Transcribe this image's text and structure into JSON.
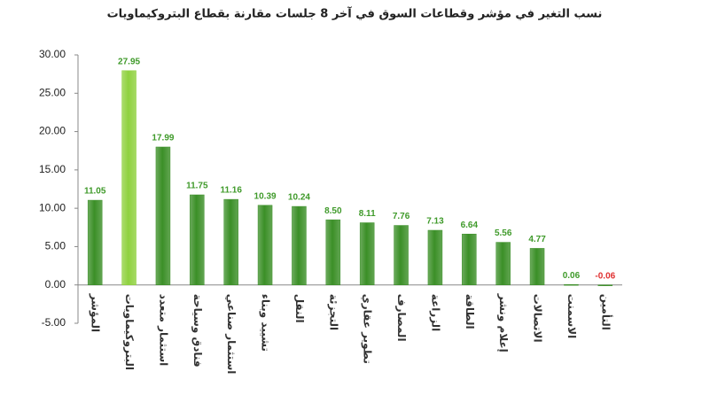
{
  "chart_data": {
    "type": "bar",
    "title": "نسب التغير في مؤشر وقطاعات السوق في آخر 8 جلسات مقارنة بقطاع البتروكيماويات",
    "categories": [
      "المؤشر",
      "البتروكيماويات",
      "استثمار متعدد",
      "فنادق وسياحة",
      "استثمار صناعي",
      "تشييد وبناء",
      "النقل",
      "التجزئة",
      "تطوير عقاري",
      "المصارف",
      "الزراعة",
      "الطاقة",
      "إعلام ونشر",
      "الاتصالات",
      "الاسمنت",
      "التأمين"
    ],
    "values": [
      11.05,
      27.95,
      17.99,
      11.75,
      11.16,
      10.39,
      10.24,
      8.5,
      8.11,
      7.76,
      7.13,
      6.64,
      5.56,
      4.77,
      0.06,
      -0.06
    ],
    "value_labels": [
      "11.05",
      "27.95",
      "17.99",
      "11.75",
      "11.16",
      "10.39",
      "10.24",
      "8.50",
      "8.11",
      "7.76",
      "7.13",
      "6.64",
      "5.56",
      "4.77",
      "0.06",
      "-0.06"
    ],
    "colors": [
      "#3b8f27",
      "#8fd13f",
      "#3b8f27",
      "#3b8f27",
      "#3b8f27",
      "#3b8f27",
      "#3b8f27",
      "#3b8f27",
      "#3b8f27",
      "#3b8f27",
      "#3b8f27",
      "#3b8f27",
      "#3b8f27",
      "#3b8f27",
      "#3b8f27",
      "#3b8f27"
    ],
    "ylim": [
      -5,
      30
    ],
    "yticks": [
      {
        "value": -5,
        "label": "-5.00"
      },
      {
        "value": 0,
        "label": "0.00"
      },
      {
        "value": 5,
        "label": "5.00"
      },
      {
        "value": 10,
        "label": "10.00"
      },
      {
        "value": 15,
        "label": "15.00"
      },
      {
        "value": 20,
        "label": "20.00"
      },
      {
        "value": 25,
        "label": "25.00"
      },
      {
        "value": 30,
        "label": "30.00"
      }
    ],
    "grid": false
  }
}
